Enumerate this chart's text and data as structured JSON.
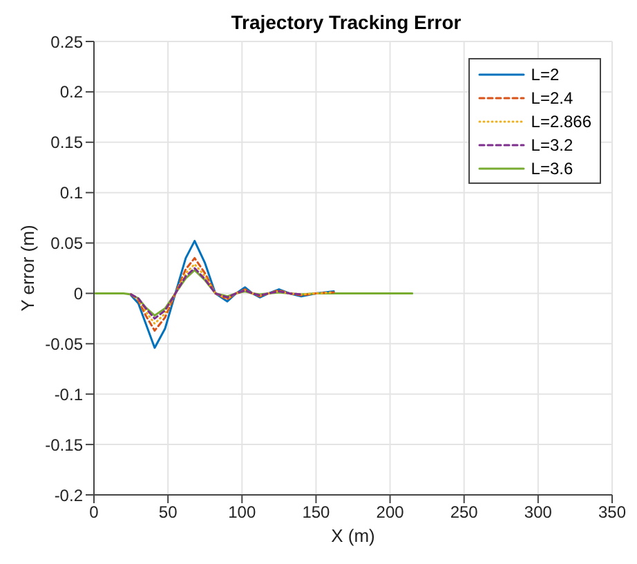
{
  "chart_data": {
    "type": "line",
    "title": "Trajectory Tracking Error",
    "xlabel": "X (m)",
    "ylabel": "Y error (m)",
    "x": [
      0,
      10,
      20,
      25,
      30,
      35,
      41,
      48,
      55,
      62,
      68,
      75,
      82,
      90,
      96,
      102,
      107,
      112,
      118,
      125,
      132,
      140,
      150,
      162,
      175,
      190,
      215
    ],
    "series": [
      {
        "name": "L=2",
        "color": "#0072bd",
        "line_style": "solid",
        "values": [
          null,
          null,
          null,
          -0.002,
          -0.01,
          -0.03,
          -0.054,
          -0.035,
          0,
          0.035,
          0.052,
          0.03,
          0,
          -0.008,
          0,
          0.006,
          0,
          -0.004,
          0,
          0.004,
          0,
          -0.003,
          0,
          0.002,
          null,
          null,
          null
        ]
      },
      {
        "name": "L=2.4",
        "color": "#d95319",
        "line_style": "dashed",
        "values": [
          null,
          null,
          null,
          -0.001,
          -0.007,
          -0.022,
          -0.037,
          -0.024,
          0,
          0.024,
          0.035,
          0.02,
          0,
          -0.006,
          0,
          0.004,
          0,
          -0.003,
          0,
          0.003,
          0,
          -0.002,
          0,
          0.001,
          null,
          null,
          null
        ]
      },
      {
        "name": "L=2.866",
        "color": "#edb120",
        "line_style": "dotted",
        "values": [
          null,
          null,
          null,
          -0.001,
          -0.006,
          -0.018,
          -0.03,
          -0.02,
          0,
          0.02,
          0.029,
          0.017,
          0,
          -0.005,
          0,
          0.003,
          0,
          -0.002,
          0,
          0.002,
          0,
          -0.001,
          0,
          0.001,
          null,
          null,
          null
        ]
      },
      {
        "name": "L=3.2",
        "color": "#7e2f8e",
        "line_style": "dashed",
        "values": [
          null,
          null,
          null,
          -0.001,
          -0.005,
          -0.015,
          -0.025,
          -0.017,
          0,
          0.017,
          0.025,
          0.014,
          0,
          -0.004,
          0,
          0.003,
          0,
          -0.002,
          0,
          0.002,
          0,
          -0.001,
          null,
          null,
          null,
          null,
          null
        ]
      },
      {
        "name": "L=3.6",
        "color": "#77ac30",
        "line_style": "solid",
        "values": [
          0,
          0,
          0,
          -0.001,
          -0.005,
          -0.014,
          -0.022,
          -0.015,
          0,
          0.015,
          0.023,
          0.013,
          0,
          -0.003,
          0,
          0.002,
          0,
          -0.001,
          0,
          0.001,
          0,
          -0.001,
          0,
          0,
          0,
          0,
          0
        ]
      }
    ],
    "xlim": [
      0,
      350
    ],
    "xticks": [
      0,
      50,
      100,
      150,
      200,
      250,
      300,
      350
    ],
    "ylim": [
      -0.2,
      0.25
    ],
    "yticks": [
      -0.2,
      -0.15,
      -0.1,
      -0.05,
      0,
      0.05,
      0.1,
      0.15,
      0.2,
      0.25
    ],
    "grid": true,
    "legend": "top right",
    "marker": "none"
  }
}
